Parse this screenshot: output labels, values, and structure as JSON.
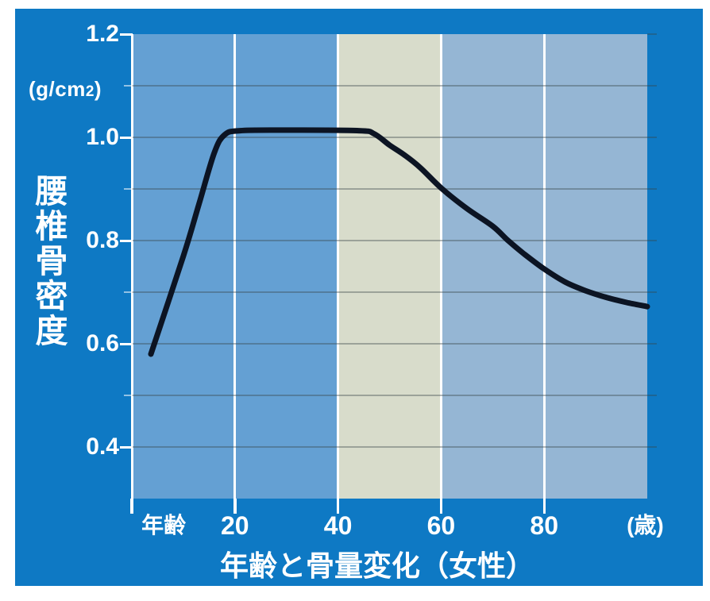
{
  "title": "年齢と骨量変化（女性）",
  "colors": {
    "page_bg": "#ffffff",
    "panel_bg": "#0e79c4",
    "plot_col_young": "#64a0d3",
    "plot_col_old": "#95b6d4",
    "highlight_band": "#d8dccb",
    "grid_line": "rgba(55,68,70,0.38)",
    "axis_line": "#ffffff",
    "minor_tick": "rgba(255,255,255,0.55)",
    "text": "#ffffff",
    "curve": "#0c1423"
  },
  "y_axis": {
    "title": "腰椎骨密度",
    "unit_prefix": "(g/cm",
    "unit_sub": "2",
    "unit_suffix": ")",
    "major_ticks": [
      {
        "value": 1.2,
        "label": "1.2"
      },
      {
        "value": 1.0,
        "label": "1.0"
      },
      {
        "value": 0.8,
        "label": "0.8"
      },
      {
        "value": 0.6,
        "label": "0.6"
      },
      {
        "value": 0.4,
        "label": "0.4"
      }
    ],
    "minor_tick_values": [
      1.1,
      0.9,
      0.7,
      0.5
    ]
  },
  "x_axis": {
    "label_left": "年齢",
    "label_left_age_center": 6.2,
    "unit_right": "(歳)",
    "unit_right_age_center": 99.6,
    "ticks": [
      {
        "value": 20,
        "label": "20"
      },
      {
        "value": 40,
        "label": "40"
      },
      {
        "value": 60,
        "label": "60"
      },
      {
        "value": 80,
        "label": "80"
      }
    ],
    "edge_tick_values": [
      0,
      20,
      40,
      60,
      80
    ]
  },
  "chart_data": {
    "type": "line",
    "title": "年齢と骨量変化（女性）",
    "xlabel": "年齢（歳）",
    "ylabel": "腰椎骨密度 (g/cm2)",
    "xlim": [
      0,
      100
    ],
    "ylim": [
      0.3,
      1.2
    ],
    "x_tick_values": [
      20,
      40,
      60,
      80
    ],
    "y_tick_values": [
      1.2,
      1.0,
      0.8,
      0.6,
      0.4
    ],
    "grid": "horizontal gray lines every 0.1 g/cm2; vertical white lines every 20 years",
    "highlight_band_x": [
      40,
      60
    ],
    "legend": "none",
    "series": [
      {
        "name": "腰椎骨密度（女性）",
        "points": [
          [
            3.7,
            0.58
          ],
          [
            10,
            0.77
          ],
          [
            13,
            0.87
          ],
          [
            16,
            0.97
          ],
          [
            18,
            1.005
          ],
          [
            21,
            1.013
          ],
          [
            30,
            1.014
          ],
          [
            44,
            1.013
          ],
          [
            47,
            1.007
          ],
          [
            50,
            0.985
          ],
          [
            53,
            0.965
          ],
          [
            56,
            0.941
          ],
          [
            60,
            0.902
          ],
          [
            65,
            0.862
          ],
          [
            70,
            0.828
          ],
          [
            73,
            0.8
          ],
          [
            76,
            0.775
          ],
          [
            80,
            0.745
          ],
          [
            84,
            0.72
          ],
          [
            88,
            0.703
          ],
          [
            92,
            0.69
          ],
          [
            96,
            0.68
          ],
          [
            100,
            0.672
          ]
        ]
      }
    ]
  }
}
